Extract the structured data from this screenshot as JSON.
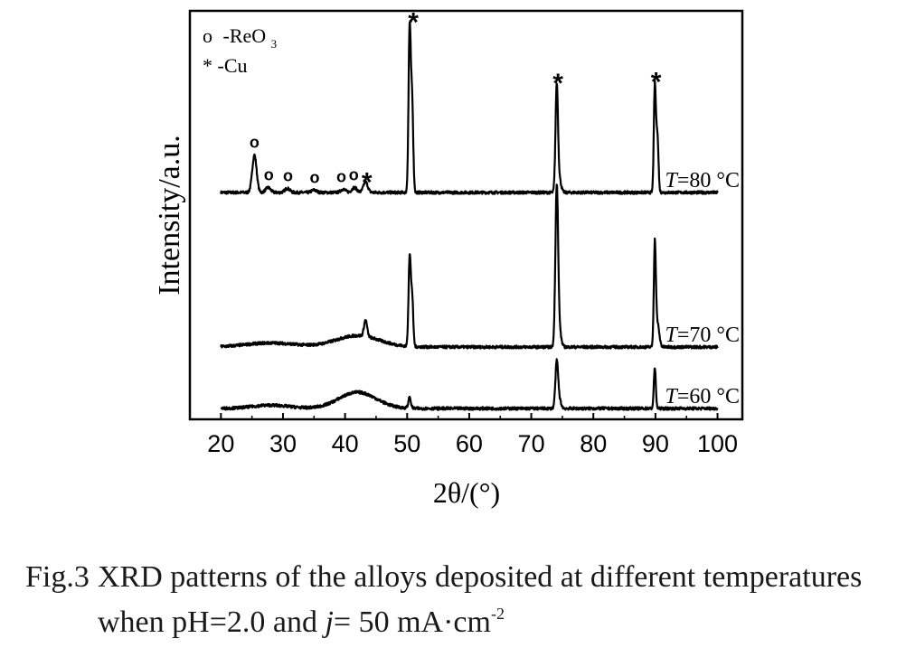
{
  "chart_data": {
    "type": "line",
    "xlabel": "2θ/(°)",
    "ylabel": "Intensity/a.u.",
    "xlim": [
      15,
      104
    ],
    "xticks": [
      20,
      30,
      40,
      50,
      60,
      70,
      80,
      90,
      100
    ],
    "legend": {
      "placement": "top-left",
      "entries": [
        {
          "marker": "o",
          "text": "-ReO",
          "sub": "3"
        },
        {
          "marker": "*",
          "text": "-Cu",
          "sub": ""
        }
      ]
    },
    "series": [
      {
        "name": "T=80 °C",
        "label_italic": "T",
        "label_rest": "=80 °C",
        "baseline": 0,
        "hump": null,
        "peaks": [
          {
            "x": 25.4,
            "height": 0.46,
            "width": 0.35
          },
          {
            "x": 27.6,
            "height": 0.06,
            "width": 0.4
          },
          {
            "x": 30.7,
            "height": 0.05,
            "width": 0.4
          },
          {
            "x": 35.0,
            "height": 0.03,
            "width": 0.4
          },
          {
            "x": 39.7,
            "height": 0.04,
            "width": 0.4
          },
          {
            "x": 41.5,
            "height": 0.06,
            "width": 0.4
          },
          {
            "x": 43.3,
            "height": 0.13,
            "width": 0.35
          },
          {
            "x": 50.4,
            "height": 2.0,
            "width": 0.18
          },
          {
            "x": 50.8,
            "height": 1.1,
            "width": 0.18
          },
          {
            "x": 74.1,
            "height": 1.28,
            "width": 0.2
          },
          {
            "x": 74.5,
            "height": 0.16,
            "width": 0.3
          },
          {
            "x": 89.9,
            "height": 1.3,
            "width": 0.16
          },
          {
            "x": 90.3,
            "height": 0.72,
            "width": 0.18
          }
        ],
        "annotations": [
          {
            "x": 25.4,
            "symbol": "o"
          },
          {
            "x": 27.7,
            "symbol": "o"
          },
          {
            "x": 30.8,
            "symbol": "o"
          },
          {
            "x": 35.1,
            "symbol": "o"
          },
          {
            "x": 39.4,
            "symbol": "o"
          },
          {
            "x": 41.4,
            "symbol": "o"
          },
          {
            "x": 43.5,
            "symbol": "*"
          },
          {
            "x": 51.0,
            "symbol": "*"
          },
          {
            "x": 74.3,
            "symbol": "*"
          },
          {
            "x": 90.1,
            "symbol": "*"
          }
        ]
      },
      {
        "name": "T=70 °C",
        "label_italic": "T",
        "label_rest": "=70 °C",
        "baseline": 0,
        "hump": {
          "center": 42.0,
          "height": 0.14,
          "width": 3.5
        },
        "peaks": [
          {
            "x": 43.3,
            "height": 0.2,
            "width": 0.25
          },
          {
            "x": 50.4,
            "height": 1.08,
            "width": 0.18
          },
          {
            "x": 50.8,
            "height": 0.6,
            "width": 0.18
          },
          {
            "x": 74.1,
            "height": 1.93,
            "width": 0.22
          },
          {
            "x": 74.5,
            "height": 0.2,
            "width": 0.3
          },
          {
            "x": 89.9,
            "height": 1.2,
            "width": 0.16
          },
          {
            "x": 90.3,
            "height": 0.3,
            "width": 0.3
          }
        ],
        "annotations": []
      },
      {
        "name": "T=60 °C",
        "label_italic": "T",
        "label_rest": "=60 °C",
        "baseline": 0,
        "hump": {
          "center": 42.0,
          "height": 0.2,
          "width": 3.0
        },
        "peaks": [
          {
            "x": 50.4,
            "height": 0.13,
            "width": 0.2
          },
          {
            "x": 74.1,
            "height": 0.55,
            "width": 0.22
          },
          {
            "x": 74.5,
            "height": 0.1,
            "width": 0.3
          },
          {
            "x": 89.9,
            "height": 0.5,
            "width": 0.16
          }
        ],
        "annotations": []
      }
    ]
  },
  "caption": {
    "label": "Fig.3",
    "line1": "XRD patterns of the alloys deposited at different temperatures",
    "line2_pre": "when pH=2.0 and ",
    "line2_italic": "j",
    "line2_post": "= 50 mA·cm",
    "line2_sup": "-2"
  }
}
